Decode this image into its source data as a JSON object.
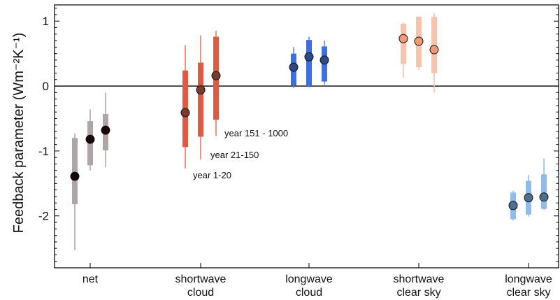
{
  "chart_data": {
    "type": "box",
    "ylabel": "Feedback parameter (Wm⁻²K⁻¹)",
    "ylim": [
      -2.8,
      1.25
    ],
    "yticks": [
      1,
      0,
      -1,
      -2
    ],
    "ytick_labels": [
      "1",
      "0",
      "-1",
      "-2"
    ],
    "zero_line": true,
    "period_labels": [
      "year 1-20",
      "year 21-150",
      "year 151 - 1000"
    ],
    "categories": [
      {
        "label_lines": [
          "net"
        ],
        "bar_color": "#aea5a7",
        "whisker_color": "#aea5a7",
        "marker_color": "#1a0606",
        "periods": [
          {
            "median": -1.39,
            "q1": -1.82,
            "q3": -0.8,
            "min": -2.53,
            "max": -0.73
          },
          {
            "median": -0.82,
            "q1": -1.22,
            "q3": -0.54,
            "min": -1.3,
            "max": -0.36
          },
          {
            "median": -0.68,
            "q1": -0.99,
            "q3": -0.43,
            "min": -1.25,
            "max": -0.1
          }
        ]
      },
      {
        "label_lines": [
          "shortwave",
          "cloud"
        ],
        "bar_color": "#e05a42",
        "whisker_color": "#e57a63",
        "marker_color": "#7a3a30",
        "periods": [
          {
            "median": -0.41,
            "q1": -0.94,
            "q3": 0.24,
            "min": -1.27,
            "max": 0.63
          },
          {
            "median": -0.06,
            "q1": -0.78,
            "q3": 0.36,
            "min": -1.13,
            "max": 0.78
          },
          {
            "median": 0.16,
            "q1": -0.52,
            "q3": 0.76,
            "min": -0.77,
            "max": 0.85
          }
        ]
      },
      {
        "label_lines": [
          "longwave",
          "cloud"
        ],
        "bar_color": "#3d6fe3",
        "whisker_color": "#5b85e8",
        "marker_color": "#2c4a8a",
        "periods": [
          {
            "median": 0.29,
            "q1": 0.01,
            "q3": 0.5,
            "min": -0.03,
            "max": 0.6
          },
          {
            "median": 0.45,
            "q1": 0.0,
            "q3": 0.71,
            "min": -0.02,
            "max": 0.76
          },
          {
            "median": 0.4,
            "q1": 0.07,
            "q3": 0.61,
            "min": 0.02,
            "max": 0.7
          }
        ]
      },
      {
        "label_lines": [
          "shortwave",
          "clear sky"
        ],
        "bar_color": "#f6c3ad",
        "whisker_color": "#f6c3ad",
        "marker_color": "#ee9a7a",
        "periods": [
          {
            "median": 0.73,
            "q1": 0.34,
            "q3": 0.96,
            "min": 0.13,
            "max": 0.98
          },
          {
            "median": 0.69,
            "q1": 0.29,
            "q3": 1.07,
            "min": 0.25,
            "max": 1.07
          },
          {
            "median": 0.56,
            "q1": 0.2,
            "q3": 1.07,
            "min": -0.1,
            "max": 1.12
          }
        ]
      },
      {
        "label_lines": [
          "longwave",
          "clear sky"
        ],
        "bar_color": "#8fbcec",
        "whisker_color": "#8fbcec",
        "marker_color": "#4f6f8f",
        "periods": [
          {
            "median": -1.84,
            "q1": -2.05,
            "q3": -1.64,
            "min": -2.07,
            "max": -1.61
          },
          {
            "median": -1.72,
            "q1": -1.98,
            "q3": -1.46,
            "min": -2.01,
            "max": -1.37
          },
          {
            "median": -1.71,
            "q1": -1.89,
            "q3": -1.36,
            "min": -1.91,
            "max": -1.12
          }
        ]
      }
    ]
  }
}
